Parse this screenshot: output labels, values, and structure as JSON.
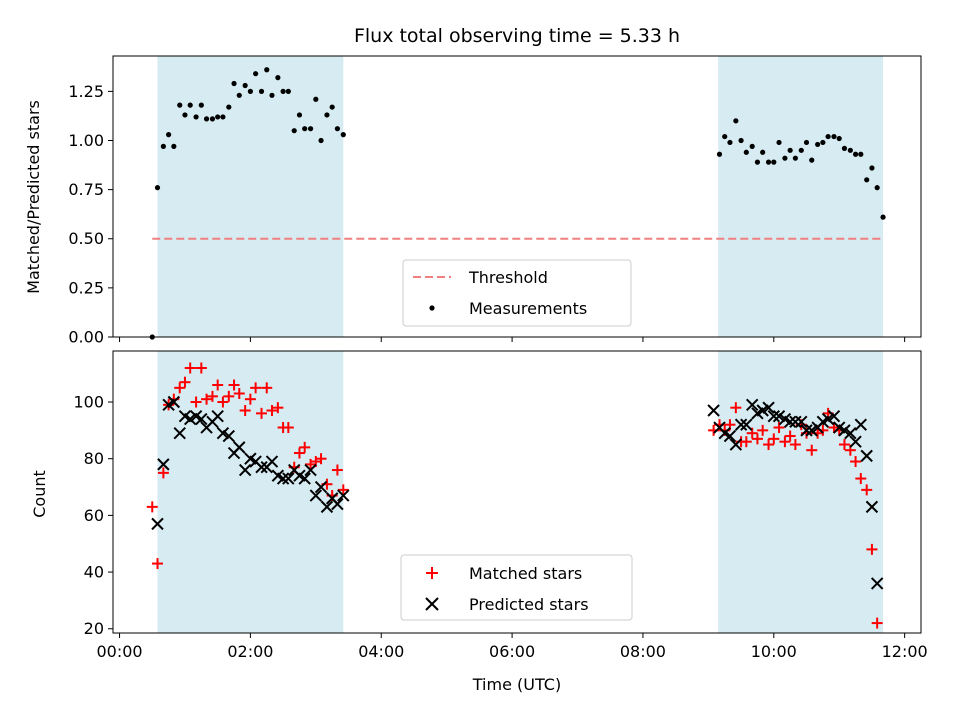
{
  "chart_data": [
    {
      "type": "scatter",
      "title": "Flux total observing time = 5.33 h",
      "xlabel": "",
      "ylabel": "Matched/Predicted stars",
      "xlim": [
        -0.1,
        12.25
      ],
      "ylim": [
        0,
        1.43
      ],
      "yticks": [
        "0.00",
        "0.25",
        "0.50",
        "0.75",
        "1.00",
        "1.25"
      ],
      "shaded_intervals": [
        [
          0.58,
          3.42
        ],
        [
          9.15,
          11.67
        ]
      ],
      "shade_color": "#add8e6",
      "legend_location": "lower center",
      "threshold": {
        "name": "Threshold",
        "y": 0.5,
        "x_range": [
          0.5,
          11.67
        ],
        "color": "#f08080"
      },
      "series": [
        {
          "name": "Measurements",
          "color": "#000000",
          "marker": "dot",
          "points": [
            [
              0.5,
              0.0
            ],
            [
              0.58,
              0.76
            ],
            [
              0.67,
              0.97
            ],
            [
              0.75,
              1.03
            ],
            [
              0.83,
              0.97
            ],
            [
              0.92,
              1.18
            ],
            [
              1.0,
              1.13
            ],
            [
              1.08,
              1.18
            ],
            [
              1.17,
              1.12
            ],
            [
              1.25,
              1.18
            ],
            [
              1.33,
              1.11
            ],
            [
              1.42,
              1.11
            ],
            [
              1.5,
              1.12
            ],
            [
              1.58,
              1.12
            ],
            [
              1.67,
              1.17
            ],
            [
              1.75,
              1.29
            ],
            [
              1.83,
              1.23
            ],
            [
              1.92,
              1.28
            ],
            [
              2.0,
              1.25
            ],
            [
              2.08,
              1.34
            ],
            [
              2.17,
              1.25
            ],
            [
              2.25,
              1.36
            ],
            [
              2.33,
              1.23
            ],
            [
              2.42,
              1.32
            ],
            [
              2.5,
              1.25
            ],
            [
              2.58,
              1.25
            ],
            [
              2.67,
              1.05
            ],
            [
              2.75,
              1.13
            ],
            [
              2.83,
              1.06
            ],
            [
              2.92,
              1.06
            ],
            [
              3.0,
              1.21
            ],
            [
              3.08,
              1.0
            ],
            [
              3.17,
              1.13
            ],
            [
              3.25,
              1.17
            ],
            [
              3.33,
              1.06
            ],
            [
              3.42,
              1.03
            ],
            [
              9.17,
              0.93
            ],
            [
              9.25,
              1.02
            ],
            [
              9.33,
              0.99
            ],
            [
              9.42,
              1.1
            ],
            [
              9.5,
              1.0
            ],
            [
              9.58,
              0.94
            ],
            [
              9.67,
              0.97
            ],
            [
              9.75,
              0.89
            ],
            [
              9.83,
              0.94
            ],
            [
              9.92,
              0.89
            ],
            [
              10.0,
              0.89
            ],
            [
              10.08,
              0.99
            ],
            [
              10.17,
              0.91
            ],
            [
              10.25,
              0.95
            ],
            [
              10.33,
              0.91
            ],
            [
              10.42,
              0.95
            ],
            [
              10.5,
              0.99
            ],
            [
              10.58,
              0.9
            ],
            [
              10.67,
              0.98
            ],
            [
              10.75,
              0.99
            ],
            [
              10.83,
              1.02
            ],
            [
              10.92,
              1.02
            ],
            [
              11.0,
              1.01
            ],
            [
              11.08,
              0.96
            ],
            [
              11.17,
              0.95
            ],
            [
              11.25,
              0.93
            ],
            [
              11.33,
              0.93
            ],
            [
              11.42,
              0.8
            ],
            [
              11.5,
              0.86
            ],
            [
              11.58,
              0.76
            ],
            [
              11.67,
              0.61
            ]
          ]
        }
      ]
    },
    {
      "type": "scatter",
      "title": "",
      "xlabel": "Time (UTC)",
      "ylabel": "Count",
      "xlim": [
        -0.1,
        12.25
      ],
      "ylim": [
        18.5,
        118
      ],
      "yticks": [
        "20",
        "40",
        "60",
        "80",
        "100"
      ],
      "xticks": [
        "00:00",
        "02:00",
        "04:00",
        "06:00",
        "08:00",
        "10:00",
        "12:00"
      ],
      "shaded_intervals": [
        [
          0.58,
          3.42
        ],
        [
          9.15,
          11.67
        ]
      ],
      "shade_color": "#add8e6",
      "legend_location": "lower center",
      "series": [
        {
          "name": "Matched stars",
          "color": "#ff0000",
          "marker": "plus",
          "points": [
            [
              0.5,
              63
            ],
            [
              0.58,
              43
            ],
            [
              0.67,
              75
            ],
            [
              0.75,
              99
            ],
            [
              0.83,
              101
            ],
            [
              0.92,
              105
            ],
            [
              1.0,
              107
            ],
            [
              1.08,
              112
            ],
            [
              1.17,
              100
            ],
            [
              1.25,
              112
            ],
            [
              1.33,
              101
            ],
            [
              1.42,
              102
            ],
            [
              1.5,
              106
            ],
            [
              1.58,
              100
            ],
            [
              1.67,
              102
            ],
            [
              1.75,
              106
            ],
            [
              1.83,
              103
            ],
            [
              1.92,
              97
            ],
            [
              2.0,
              101
            ],
            [
              2.08,
              105
            ],
            [
              2.17,
              96
            ],
            [
              2.25,
              105
            ],
            [
              2.33,
              97
            ],
            [
              2.42,
              98
            ],
            [
              2.5,
              91
            ],
            [
              2.58,
              91
            ],
            [
              2.67,
              77
            ],
            [
              2.75,
              82
            ],
            [
              2.83,
              84
            ],
            [
              2.92,
              78
            ],
            [
              3.0,
              79
            ],
            [
              3.08,
              80
            ],
            [
              3.17,
              71
            ],
            [
              3.25,
              67
            ],
            [
              3.33,
              76
            ],
            [
              3.42,
              69
            ],
            [
              9.08,
              90
            ],
            [
              9.17,
              92
            ],
            [
              9.25,
              90
            ],
            [
              9.33,
              92
            ],
            [
              9.42,
              98
            ],
            [
              9.5,
              86
            ],
            [
              9.58,
              86
            ],
            [
              9.67,
              89
            ],
            [
              9.75,
              87
            ],
            [
              9.83,
              90
            ],
            [
              9.92,
              85
            ],
            [
              10.0,
              87
            ],
            [
              10.08,
              91
            ],
            [
              10.17,
              86
            ],
            [
              10.25,
              88
            ],
            [
              10.33,
              85
            ],
            [
              10.42,
              92
            ],
            [
              10.5,
              89
            ],
            [
              10.58,
              83
            ],
            [
              10.67,
              89
            ],
            [
              10.75,
              90
            ],
            [
              10.83,
              96
            ],
            [
              10.92,
              91
            ],
            [
              11.0,
              90
            ],
            [
              11.08,
              85
            ],
            [
              11.17,
              83
            ],
            [
              11.25,
              79
            ],
            [
              11.33,
              73
            ],
            [
              11.42,
              69
            ],
            [
              11.5,
              48
            ],
            [
              11.58,
              22
            ]
          ]
        },
        {
          "name": "Predicted stars",
          "color": "#000000",
          "marker": "x",
          "points": [
            [
              0.58,
              57
            ],
            [
              0.67,
              78
            ],
            [
              0.75,
              99
            ],
            [
              0.83,
              100
            ],
            [
              0.92,
              89
            ],
            [
              1.0,
              95
            ],
            [
              1.08,
              94
            ],
            [
              1.17,
              95
            ],
            [
              1.25,
              94
            ],
            [
              1.33,
              91
            ],
            [
              1.42,
              93
            ],
            [
              1.5,
              95
            ],
            [
              1.58,
              89
            ],
            [
              1.67,
              88
            ],
            [
              1.75,
              82
            ],
            [
              1.83,
              84
            ],
            [
              1.92,
              76
            ],
            [
              2.0,
              80
            ],
            [
              2.08,
              79
            ],
            [
              2.17,
              77
            ],
            [
              2.25,
              77
            ],
            [
              2.33,
              79
            ],
            [
              2.42,
              74
            ],
            [
              2.5,
              73
            ],
            [
              2.58,
              73
            ],
            [
              2.67,
              76
            ],
            [
              2.75,
              74
            ],
            [
              2.83,
              73
            ],
            [
              2.92,
              76
            ],
            [
              3.0,
              67
            ],
            [
              3.08,
              70
            ],
            [
              3.17,
              63
            ],
            [
              3.25,
              66
            ],
            [
              3.33,
              64
            ],
            [
              3.42,
              67
            ],
            [
              9.08,
              97
            ],
            [
              9.17,
              91
            ],
            [
              9.25,
              89
            ],
            [
              9.33,
              88
            ],
            [
              9.42,
              85
            ],
            [
              9.5,
              92
            ],
            [
              9.58,
              92
            ],
            [
              9.67,
              99
            ],
            [
              9.75,
              96
            ],
            [
              9.83,
              97
            ],
            [
              9.92,
              98
            ],
            [
              10.0,
              95
            ],
            [
              10.08,
              95
            ],
            [
              10.17,
              94
            ],
            [
              10.25,
              93
            ],
            [
              10.33,
              93
            ],
            [
              10.42,
              93
            ],
            [
              10.5,
              90
            ],
            [
              10.58,
              90
            ],
            [
              10.67,
              91
            ],
            [
              10.75,
              93
            ],
            [
              10.83,
              94
            ],
            [
              10.92,
              95
            ],
            [
              11.0,
              91
            ],
            [
              11.08,
              90
            ],
            [
              11.17,
              89
            ],
            [
              11.25,
              86
            ],
            [
              11.33,
              92
            ],
            [
              11.42,
              81
            ],
            [
              11.5,
              63
            ],
            [
              11.58,
              36
            ]
          ]
        }
      ]
    }
  ]
}
